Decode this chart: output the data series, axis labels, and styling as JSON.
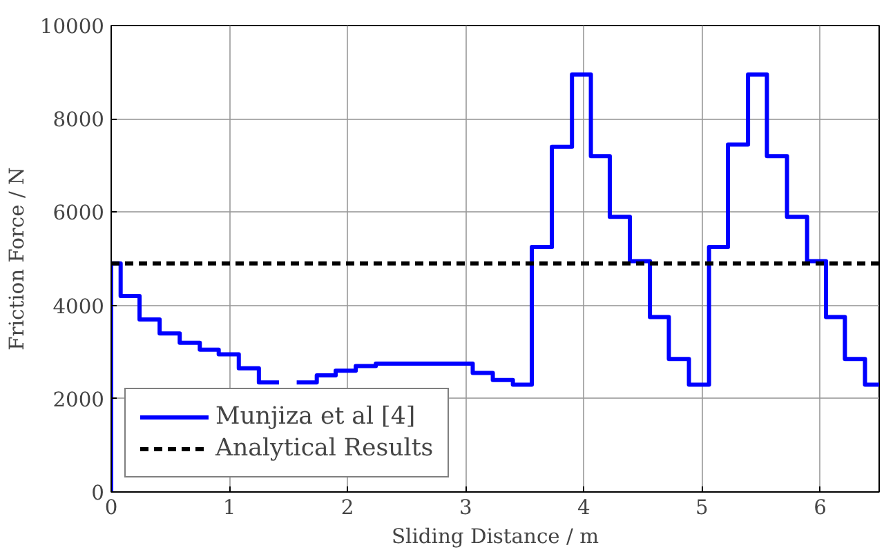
{
  "chart_data": {
    "type": "step",
    "xlabel": "Sliding Distance / m",
    "ylabel": "Friction Force / N",
    "xlim": [
      0,
      6.5
    ],
    "ylim": [
      0,
      10000
    ],
    "xticks": [
      0,
      1,
      2,
      3,
      4,
      5,
      6
    ],
    "yticks": [
      0,
      2000,
      4000,
      6000,
      8000,
      10000
    ],
    "grid": true,
    "legend": "bottom left",
    "series": [
      {
        "name": "Munjiza et al [4]",
        "color": "#0000ff",
        "line_style": "solid",
        "x": [
          0,
          0,
          0.08,
          0.24,
          0.41,
          0.58,
          0.75,
          0.91,
          1.08,
          1.25,
          1.42,
          1.57,
          1.74,
          1.9,
          2.07,
          2.24,
          2.41,
          3.06,
          3.23,
          3.4,
          3.56,
          3.73,
          3.9,
          4.06,
          4.22,
          4.39,
          4.56,
          4.72,
          4.89,
          5.06,
          5.22,
          5.39,
          5.55,
          5.72,
          5.89,
          6.05,
          6.21,
          6.38,
          6.5
        ],
        "values": [
          0,
          4900,
          4200,
          3700,
          3400,
          3200,
          3050,
          2950,
          2650,
          2350,
          null,
          2350,
          2500,
          2600,
          2700,
          2750,
          2750,
          2550,
          2400,
          2300,
          5250,
          7400,
          8950,
          7200,
          5900,
          4950,
          3750,
          2850,
          2300,
          5250,
          7450,
          8950,
          7200,
          5900,
          4950,
          3750,
          2850,
          2300,
          2300
        ]
      },
      {
        "name": "Analytical Results",
        "type": "line",
        "color": "#000000",
        "line_style": "dashed",
        "x": [
          0,
          6.5
        ],
        "values": [
          4900,
          4900
        ]
      }
    ]
  }
}
